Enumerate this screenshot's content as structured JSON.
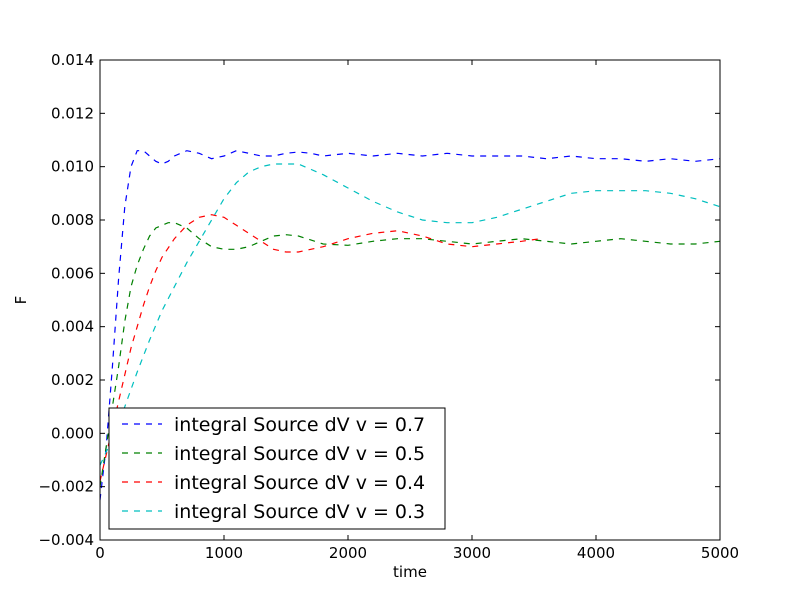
{
  "chart_data": {
    "type": "line",
    "title": "",
    "xlabel": "time",
    "ylabel": "F",
    "xlim": [
      0,
      5000
    ],
    "ylim": [
      -0.004,
      0.014
    ],
    "grid": false,
    "legend_position": "lower-left",
    "xticks": [
      0,
      1000,
      2000,
      3000,
      4000,
      5000
    ],
    "xtick_labels": [
      "0",
      "1000",
      "2000",
      "3000",
      "4000",
      "5000"
    ],
    "yticks": [
      -0.004,
      -0.002,
      0.0,
      0.002,
      0.004,
      0.006,
      0.008,
      0.01,
      0.012,
      0.014
    ],
    "ytick_labels": [
      "−0.004",
      "−0.002",
      "0.000",
      "0.002",
      "0.004",
      "0.006",
      "0.008",
      "0.010",
      "0.012",
      "0.014"
    ],
    "series": [
      {
        "name": "integral Source dV v = 0.7",
        "color": "#0000ff",
        "x": [
          0,
          50,
          100,
          150,
          200,
          250,
          300,
          350,
          400,
          450,
          500,
          550,
          600,
          700,
          800,
          900,
          1000,
          1100,
          1200,
          1300,
          1400,
          1500,
          1600,
          1700,
          1800,
          2000,
          2200,
          2400,
          2600,
          2800,
          3000,
          3200,
          3400,
          3600,
          3800,
          4000,
          4200,
          4400,
          4600,
          4800,
          5000
        ],
        "y": [
          -0.0025,
          -0.0005,
          0.0025,
          0.0058,
          0.0085,
          0.01,
          0.0106,
          0.0106,
          0.0104,
          0.0102,
          0.0101,
          0.0102,
          0.0104,
          0.0106,
          0.0105,
          0.0103,
          0.0104,
          0.0106,
          0.0105,
          0.0104,
          0.0104,
          0.0105,
          0.01055,
          0.0105,
          0.0104,
          0.0105,
          0.0104,
          0.0105,
          0.0104,
          0.0105,
          0.0104,
          0.0104,
          0.0104,
          0.0103,
          0.0104,
          0.0103,
          0.0103,
          0.0102,
          0.0103,
          0.0102,
          0.0103
        ]
      },
      {
        "name": "integral Source dV v = 0.5",
        "color": "#008000",
        "x": [
          0,
          50,
          100,
          150,
          200,
          250,
          300,
          350,
          400,
          450,
          500,
          550,
          600,
          700,
          800,
          900,
          1000,
          1100,
          1200,
          1300,
          1400,
          1500,
          1600,
          1800,
          2000,
          2200,
          2400,
          2600,
          2800,
          3000,
          3200,
          3400,
          3600,
          3800,
          4000,
          4200,
          4400,
          4600,
          4800,
          5000
        ],
        "y": [
          -0.002,
          -0.0005,
          0.001,
          0.0025,
          0.0042,
          0.0055,
          0.0063,
          0.0069,
          0.0074,
          0.0077,
          0.0078,
          0.0079,
          0.0079,
          0.0077,
          0.0073,
          0.007,
          0.0069,
          0.0069,
          0.007,
          0.0072,
          0.0074,
          0.00745,
          0.0074,
          0.0071,
          0.00705,
          0.0072,
          0.0073,
          0.0073,
          0.0072,
          0.0071,
          0.0072,
          0.0073,
          0.0072,
          0.0071,
          0.0072,
          0.0073,
          0.0072,
          0.0071,
          0.0071,
          0.0072
        ],
        "note": "legend line"
      },
      {
        "name": "integral Source dV v = 0.4",
        "color": "#ff0000",
        "x": [
          0,
          50,
          100,
          150,
          200,
          250,
          300,
          350,
          400,
          450,
          500,
          600,
          700,
          800,
          900,
          1000,
          1100,
          1200,
          1300,
          1400,
          1500,
          1600,
          1700,
          1800,
          2000,
          2200,
          2400,
          2600,
          2800,
          3000,
          3200,
          3400,
          3550
        ],
        "y": [
          -0.0018,
          -0.0008,
          0.0002,
          0.0012,
          0.0022,
          0.0032,
          0.004,
          0.0048,
          0.0055,
          0.0061,
          0.0066,
          0.0073,
          0.0078,
          0.0081,
          0.0082,
          0.0081,
          0.0078,
          0.0075,
          0.0072,
          0.0069,
          0.0068,
          0.0068,
          0.0069,
          0.007,
          0.0073,
          0.0075,
          0.0076,
          0.0074,
          0.0071,
          0.007,
          0.0071,
          0.0072,
          0.0073
        ]
      },
      {
        "name": "integral Source dV v = 0.3",
        "color": "#00bfbf",
        "x": [
          0,
          100,
          200,
          300,
          400,
          500,
          600,
          700,
          800,
          900,
          1000,
          1100,
          1200,
          1300,
          1400,
          1500,
          1600,
          1700,
          1800,
          2000,
          2200,
          2400,
          2600,
          2800,
          3000,
          3200,
          3400,
          3600,
          3800,
          4000,
          4200,
          4400,
          4600,
          4800,
          5000
        ],
        "y": [
          -0.0012,
          -0.0002,
          0.001,
          0.0023,
          0.0035,
          0.0046,
          0.0055,
          0.0064,
          0.0072,
          0.008,
          0.0088,
          0.0094,
          0.0098,
          0.01,
          0.0101,
          0.0101,
          0.0101,
          0.0099,
          0.0097,
          0.0092,
          0.0087,
          0.0083,
          0.008,
          0.0079,
          0.0079,
          0.0081,
          0.0084,
          0.0087,
          0.009,
          0.0091,
          0.0091,
          0.0091,
          0.009,
          0.0088,
          0.0085
        ]
      }
    ]
  }
}
